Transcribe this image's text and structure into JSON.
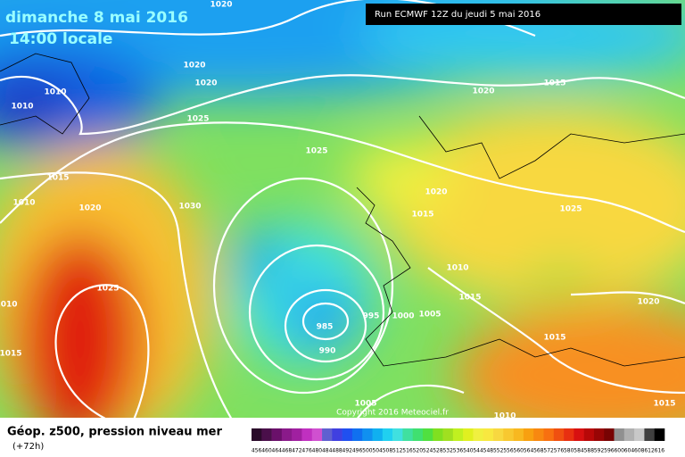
{
  "header": {
    "date": "dimanche 8 mai 2016",
    "time": "14:00 locale",
    "run": "Run ECMWF 12Z du jeudi 5 mai 2016"
  },
  "copyright": "Copyright 2016 Meteociel.fr",
  "legend": {
    "title": "Géop. z500, pression niveau mer",
    "lead": "(+72h)"
  },
  "isobar_labels": [
    "1020",
    "1010",
    "1010",
    "1020",
    "1020",
    "1025",
    "1020",
    "1015",
    "1025",
    "1015",
    "1010",
    "1020",
    "1030",
    "1020",
    "1015",
    "1025",
    "1010",
    "1015",
    "1025",
    "1010",
    "995",
    "1000",
    "1005",
    "985",
    "990",
    "1015",
    "1020",
    "1015",
    "1005",
    "1010",
    "1015"
  ],
  "colorbar": {
    "levels": [
      456,
      460,
      464,
      468,
      472,
      476,
      480,
      484,
      488,
      492,
      496,
      500,
      504,
      508,
      512,
      516,
      520,
      524,
      528,
      532,
      536,
      540,
      544,
      548,
      552,
      556,
      560,
      564,
      568,
      572,
      576,
      580,
      584,
      588,
      592,
      596,
      600,
      604,
      608,
      612,
      616
    ],
    "colors": [
      "#2a0a2a",
      "#4a0f4a",
      "#6a106a",
      "#8a1a8a",
      "#a020a0",
      "#c030c0",
      "#d050d0",
      "#6060d0",
      "#4040e0",
      "#2050f0",
      "#1070f0",
      "#1090f0",
      "#10b0f0",
      "#20d0f0",
      "#40e0e0",
      "#40e0a0",
      "#40e070",
      "#50e040",
      "#80e020",
      "#a0e020",
      "#c0f020",
      "#e0f020",
      "#f0f040",
      "#f8e840",
      "#f8d840",
      "#f8c830",
      "#f8b820",
      "#f8a010",
      "#f88810",
      "#f87010",
      "#f05010",
      "#e83010",
      "#d81010",
      "#b80808",
      "#980505",
      "#780303",
      "#909090",
      "#b0b0b0",
      "#c8c8c8",
      "#404040",
      "#000000"
    ]
  }
}
